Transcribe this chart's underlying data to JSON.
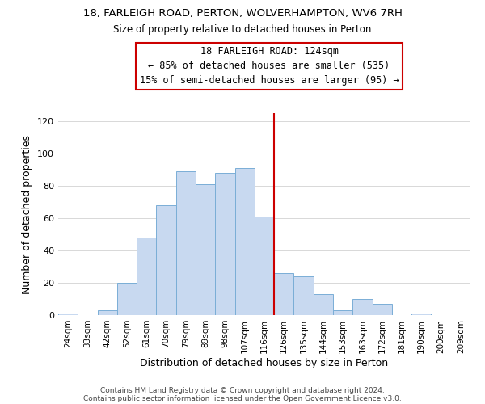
{
  "title": "18, FARLEIGH ROAD, PERTON, WOLVERHAMPTON, WV6 7RH",
  "subtitle": "Size of property relative to detached houses in Perton",
  "xlabel": "Distribution of detached houses by size in Perton",
  "ylabel": "Number of detached properties",
  "footer1": "Contains HM Land Registry data © Crown copyright and database right 2024.",
  "footer2": "Contains public sector information licensed under the Open Government Licence v3.0.",
  "bin_labels": [
    "24sqm",
    "33sqm",
    "42sqm",
    "52sqm",
    "61sqm",
    "70sqm",
    "79sqm",
    "89sqm",
    "98sqm",
    "107sqm",
    "116sqm",
    "126sqm",
    "135sqm",
    "144sqm",
    "153sqm",
    "163sqm",
    "172sqm",
    "181sqm",
    "190sqm",
    "200sqm",
    "209sqm"
  ],
  "bar_heights": [
    1,
    0,
    3,
    20,
    48,
    68,
    89,
    81,
    88,
    91,
    61,
    26,
    24,
    13,
    3,
    10,
    7,
    0,
    1,
    0,
    0
  ],
  "bar_color": "#c8d9f0",
  "bar_edge_color": "#7aaed6",
  "vline_x": 10.5,
  "vline_color": "#cc0000",
  "annotation_title": "18 FARLEIGH ROAD: 124sqm",
  "annotation_line1": "← 85% of detached houses are smaller (535)",
  "annotation_line2": "15% of semi-detached houses are larger (95) →",
  "annotation_box_color": "#ffffff",
  "annotation_box_edge": "#cc0000",
  "ylim": [
    0,
    125
  ],
  "yticks": [
    0,
    20,
    40,
    60,
    80,
    100,
    120
  ],
  "grid_color": "#d8d8d8",
  "background_color": "#ffffff",
  "title_fontsize": 9.5,
  "subtitle_fontsize": 8.5,
  "annotation_fontsize": 8.5,
  "xlabel_fontsize": 9,
  "ylabel_fontsize": 9
}
